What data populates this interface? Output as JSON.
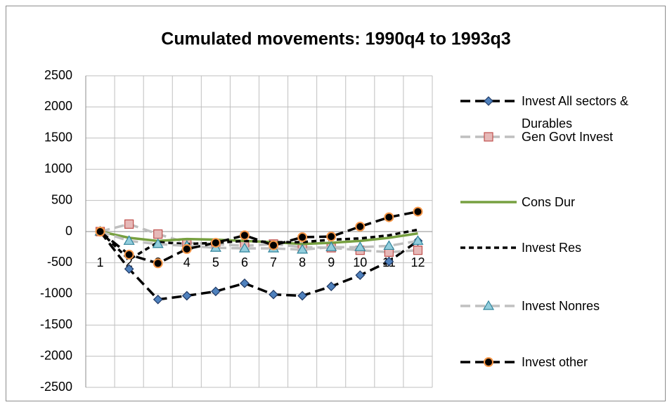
{
  "chart_data": {
    "type": "line",
    "title": "Cumulated movements: 1990q4 to 1993q3",
    "categories": [
      1,
      2,
      3,
      4,
      5,
      6,
      7,
      8,
      9,
      10,
      11,
      12
    ],
    "ylim": [
      -2500,
      2500
    ],
    "yticks": [
      -2500,
      -2000,
      -1500,
      -1000,
      -500,
      0,
      500,
      1000,
      1500,
      2000,
      2500
    ],
    "grid": true,
    "legend": "right",
    "series": [
      {
        "name": "Invest All sectors & Durables",
        "color": "#000000",
        "dash": "long",
        "marker": "diamond",
        "marker_color": "#4f81bd",
        "values": [
          0,
          -600,
          -1090,
          -1030,
          -960,
          -830,
          -1010,
          -1030,
          -880,
          -700,
          -480,
          -150
        ]
      },
      {
        "name": "Gen Govt Invest",
        "color": "#bfbfbf",
        "dash": "long",
        "marker": "square",
        "marker_color": "#c0504d",
        "values": [
          0,
          120,
          -40,
          -180,
          -200,
          -230,
          -200,
          -250,
          -260,
          -300,
          -330,
          -300
        ]
      },
      {
        "name": "Cons Dur",
        "color": "#77a040",
        "dash": "solid",
        "marker": "none",
        "marker_color": "#77a040",
        "values": [
          0,
          -100,
          -150,
          -120,
          -130,
          -150,
          -170,
          -200,
          -180,
          -150,
          -100,
          -30
        ]
      },
      {
        "name": "Invest Res",
        "color": "#000000",
        "dash": "short",
        "marker": "none",
        "marker_color": "#000000",
        "values": [
          0,
          -450,
          -170,
          -200,
          -180,
          -150,
          -170,
          -170,
          -130,
          -110,
          -60,
          30
        ]
      },
      {
        "name": "Invest Nonres",
        "color": "#c0c0c0",
        "dash": "long",
        "marker": "triangle",
        "marker_color": "#4bacc6",
        "values": [
          0,
          -150,
          -200,
          -230,
          -260,
          -270,
          -270,
          -290,
          -250,
          -250,
          -230,
          -150
        ]
      },
      {
        "name": "Invest other",
        "color": "#000000",
        "dash": "long",
        "marker": "circle",
        "marker_color": "#f79646",
        "values": [
          0,
          -370,
          -510,
          -280,
          -180,
          -60,
          -220,
          -90,
          -80,
          80,
          230,
          320
        ]
      }
    ]
  }
}
